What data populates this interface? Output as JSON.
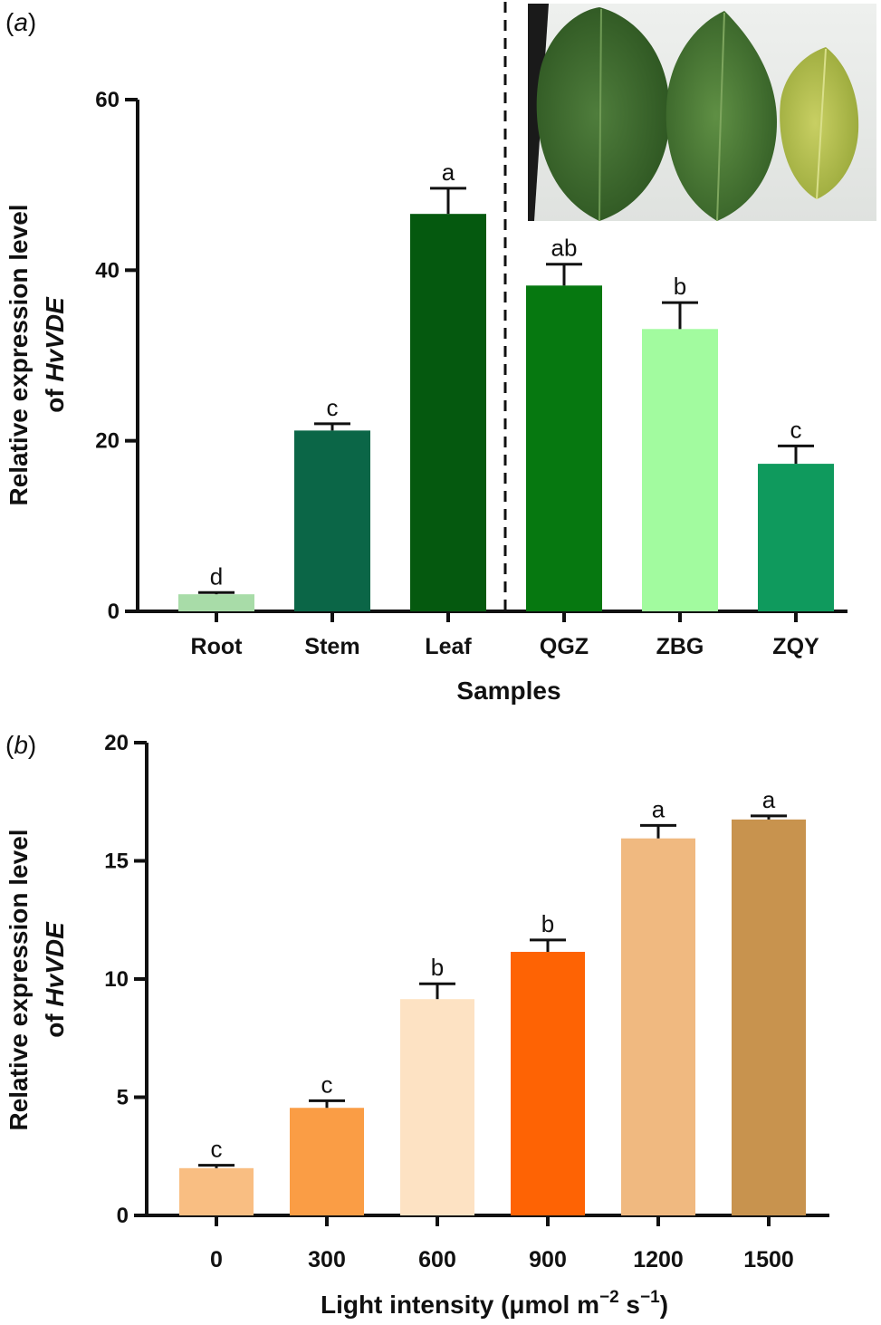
{
  "chart_data": [
    {
      "type": "bar",
      "panel_label": "(a)",
      "categories": [
        "Root",
        "Stem",
        "Leaf",
        "QGZ",
        "ZBG",
        "ZQY"
      ],
      "values": [
        2.0,
        21.2,
        46.6,
        38.2,
        33.1,
        17.3
      ],
      "errors": [
        0.2,
        0.8,
        3.0,
        2.5,
        3.1,
        2.1
      ],
      "significance": [
        "d",
        "c",
        "a",
        "ab",
        "b",
        "c"
      ],
      "colors": [
        "#a8dca8",
        "#0b6647",
        "#05590f",
        "#067810",
        "#a2fb9f",
        "#0f9a5d"
      ],
      "ylabel_line1": "Relative expression level",
      "ylabel_line2_prefix": "of ",
      "ylabel_gene": "HvVDE",
      "xlabel": "Samples",
      "ylim": [
        0,
        60
      ],
      "yticks": [
        "0",
        "20",
        "40",
        "60"
      ],
      "divider": "dashed vertical line between Leaf and QGZ",
      "inset_photo": "three hosta leaves, dark green to yellow-green"
    },
    {
      "type": "bar",
      "panel_label": "(b)",
      "categories": [
        "0",
        "300",
        "600",
        "900",
        "1200",
        "1500"
      ],
      "values": [
        2.0,
        4.55,
        9.15,
        11.15,
        15.95,
        16.75
      ],
      "errors": [
        0.12,
        0.3,
        0.65,
        0.5,
        0.55,
        0.15
      ],
      "significance": [
        "c",
        "c",
        "b",
        "b",
        "a",
        "a"
      ],
      "colors": [
        "#f9be82",
        "#fa9d45",
        "#fde2c3",
        "#fe6304",
        "#f0b980",
        "#c8934e"
      ],
      "ylabel_line1": "Relative expression level",
      "ylabel_line2_prefix": "of ",
      "ylabel_gene": "HvVDE",
      "xlabel_main": "Light intensity (μmol m",
      "xlabel_sup1": "−2",
      "xlabel_mid": " s",
      "xlabel_sup2": "−1",
      "xlabel_end": ")",
      "ylim": [
        0,
        20
      ],
      "yticks": [
        "0",
        "5",
        "10",
        "15",
        "20"
      ]
    }
  ]
}
